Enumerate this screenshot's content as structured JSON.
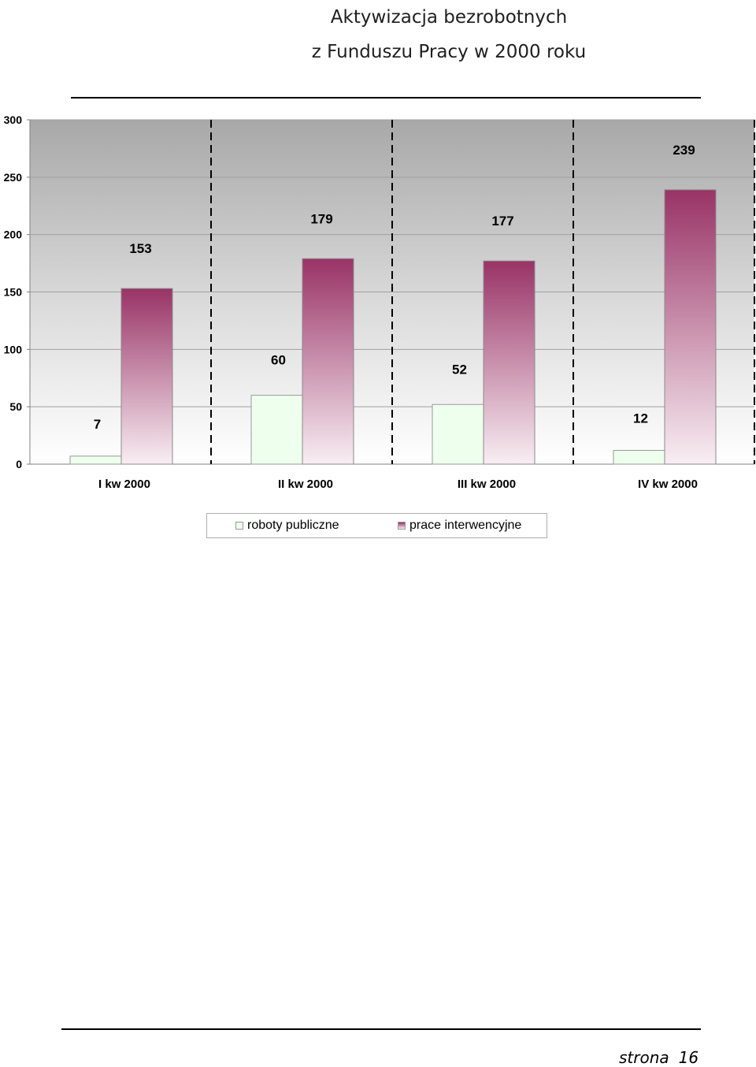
{
  "title": {
    "line1": "Aktywizacja bezrobotnych",
    "line2": "z Funduszu Pracy w 2000 roku"
  },
  "chart_data": {
    "type": "bar",
    "categories": [
      "I kw 2000",
      "II kw 2000",
      "III kw 2000",
      "IV kw 2000"
    ],
    "series": [
      {
        "name": "roboty publiczne",
        "values": [
          7,
          60,
          52,
          12
        ],
        "color": "#eeffee"
      },
      {
        "name": "prace interwencyjne",
        "values": [
          153,
          179,
          177,
          239
        ],
        "color": "#993366"
      }
    ],
    "yticks": [
      0,
      50,
      100,
      150,
      200,
      250,
      300
    ],
    "ylim": [
      0,
      300
    ],
    "grid": true,
    "legend": "bottom"
  },
  "legend": {
    "items": [
      "roboty publiczne",
      "prace interwencyjne"
    ]
  },
  "footer": {
    "label": "strona",
    "page": "16"
  }
}
